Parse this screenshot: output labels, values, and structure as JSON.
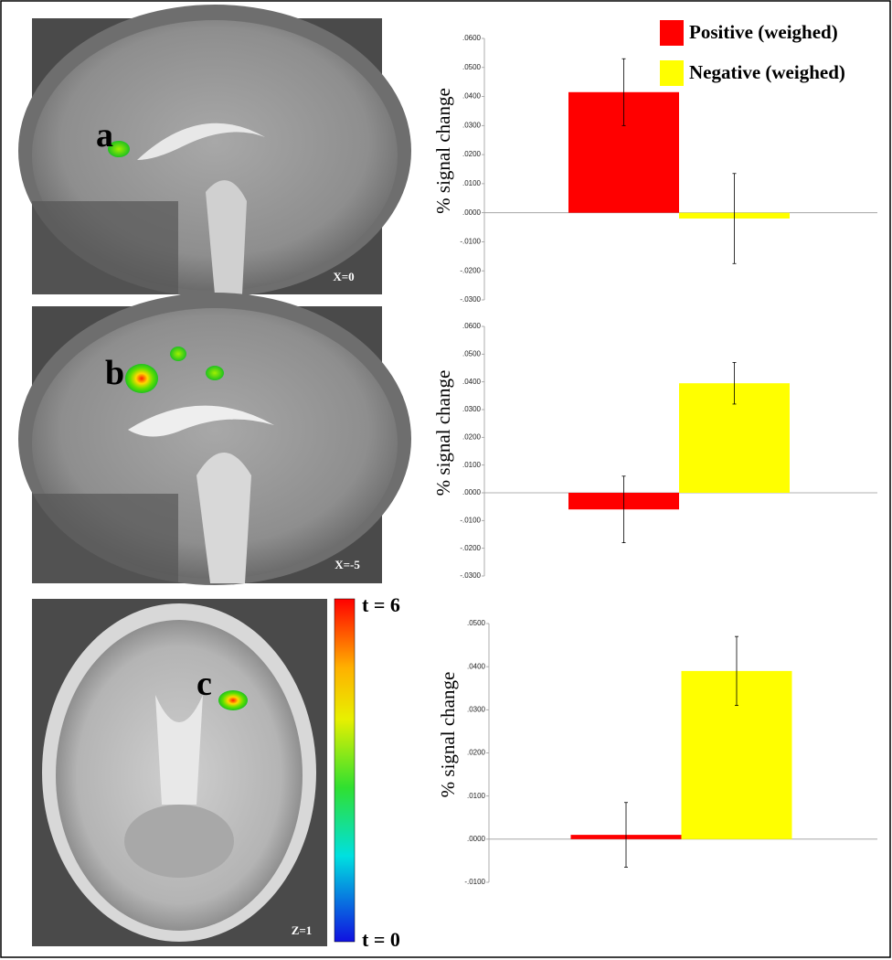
{
  "panels": [
    {
      "label": "a",
      "coordinate": "X=0"
    },
    {
      "label": "b",
      "coordinate": "X=-5"
    },
    {
      "label": "c",
      "coordinate": "Z=1"
    }
  ],
  "colorbar": {
    "top_label": "t = 6",
    "bottom_label": "t = 0"
  },
  "chart_data": [
    {
      "type": "bar",
      "y_axis_label": "%  signal change",
      "ylim": [
        -0.03,
        0.06
      ],
      "yticks": [
        {
          "value": -0.03,
          "label": "-.0300"
        },
        {
          "value": -0.02,
          "label": "-.0200"
        },
        {
          "value": -0.01,
          "label": "-.0100"
        },
        {
          "value": 0,
          "label": ".0000"
        },
        {
          "value": 0.01,
          "label": ".0100"
        },
        {
          "value": 0.02,
          "label": ".0200"
        },
        {
          "value": 0.03,
          "label": ".0300"
        },
        {
          "value": 0.04,
          "label": ".0400"
        },
        {
          "value": 0.05,
          "label": ".0500"
        },
        {
          "value": 0.06,
          "label": ".0600"
        }
      ],
      "series": [
        {
          "name": "Positive (weighed)",
          "color": "#ff0000",
          "values": [
            0.0415
          ],
          "errors": [
            0.0115
          ]
        },
        {
          "name": "Negative (weighed)",
          "color": "#ffff00",
          "values": [
            -0.002
          ],
          "errors": [
            0.0155
          ]
        }
      ]
    },
    {
      "type": "bar",
      "y_axis_label": "%  signal change",
      "ylim": [
        -0.03,
        0.06
      ],
      "yticks": [
        {
          "value": -0.03,
          "label": "-.0300"
        },
        {
          "value": -0.02,
          "label": "-.0200"
        },
        {
          "value": -0.01,
          "label": "-.0100"
        },
        {
          "value": 0,
          "label": ".0000"
        },
        {
          "value": 0.01,
          "label": ".0100"
        },
        {
          "value": 0.02,
          "label": ".0200"
        },
        {
          "value": 0.03,
          "label": ".0300"
        },
        {
          "value": 0.04,
          "label": ".0400"
        },
        {
          "value": 0.05,
          "label": ".0500"
        },
        {
          "value": 0.06,
          "label": ".0600"
        }
      ],
      "series": [
        {
          "color": "#ff0000",
          "values": [
            -0.006
          ],
          "errors": [
            0.012
          ]
        },
        {
          "color": "#ffff00",
          "values": [
            0.0395
          ],
          "errors": [
            0.0075
          ]
        }
      ]
    },
    {
      "type": "bar",
      "y_axis_label": "%  signal change",
      "ylim": [
        -0.01,
        0.05
      ],
      "yticks": [
        {
          "value": -0.01,
          "label": "-.0100"
        },
        {
          "value": 0,
          "label": ".0000"
        },
        {
          "value": 0.01,
          "label": ".0100"
        },
        {
          "value": 0.02,
          "label": ".0200"
        },
        {
          "value": 0.03,
          "label": ".0300"
        },
        {
          "value": 0.04,
          "label": ".0400"
        },
        {
          "value": 0.05,
          "label": ".0500"
        }
      ],
      "series": [
        {
          "color": "#ff0000",
          "values": [
            0.001
          ],
          "errors": [
            0.0075
          ]
        },
        {
          "color": "#ffff00",
          "values": [
            0.039
          ],
          "errors": [
            0.008
          ]
        }
      ]
    }
  ]
}
